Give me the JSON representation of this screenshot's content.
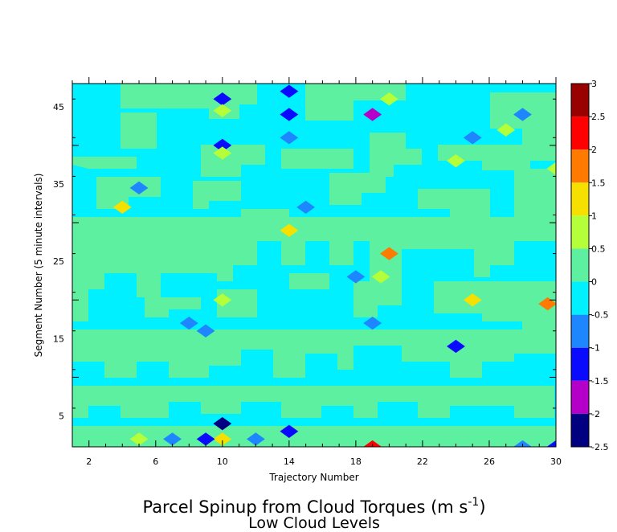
{
  "chart_data": {
    "type": "heatmap",
    "title": "Parcel Spinup from Cloud Torques (m s",
    "title_superscript": "-1",
    "title_close": ")",
    "subtitle": "Low Cloud Levels",
    "xlabel": "Trajectory Number",
    "ylabel": "Segment Number (5 minute intervals)",
    "xlim": [
      1,
      30
    ],
    "ylim": [
      1,
      48
    ],
    "x_ticks": [
      2,
      6,
      10,
      14,
      18,
      22,
      26,
      30
    ],
    "y_ticks": [
      5,
      15,
      25,
      35,
      45
    ],
    "background_level": "-0.5 to 0",
    "colorbar": {
      "labels": [
        "3",
        "2.5",
        "2",
        "1.5",
        "1",
        "0.5",
        "0",
        "-0.5",
        "-1",
        "-1.5",
        "-2",
        "-2.5"
      ],
      "colors": [
        "#990000",
        "#ff0000",
        "#ff7a00",
        "#f5e000",
        "#b5ff3a",
        "#5cf0a0",
        "#00f0ff",
        "#1e86ff",
        "#0a0aff",
        "#b400c8",
        "#000080"
      ]
    },
    "patches": [
      {
        "x": 10,
        "y": 46,
        "value": -1
      },
      {
        "x": 10,
        "y": 44.5,
        "value": 1
      },
      {
        "x": 14,
        "y": 47,
        "value": -1
      },
      {
        "x": 14,
        "y": 44,
        "value": -1
      },
      {
        "x": 14,
        "y": 41,
        "value": -0.5
      },
      {
        "x": 19,
        "y": 44,
        "value": -1.5
      },
      {
        "x": 20,
        "y": 46,
        "value": 1
      },
      {
        "x": 28,
        "y": 44,
        "value": -0.5
      },
      {
        "x": 27,
        "y": 42,
        "value": 1
      },
      {
        "x": 25,
        "y": 41,
        "value": -0.5
      },
      {
        "x": 24,
        "y": 38,
        "value": 1
      },
      {
        "x": 10,
        "y": 40,
        "value": -1
      },
      {
        "x": 10,
        "y": 39,
        "value": 1
      },
      {
        "x": 30,
        "y": 37,
        "value": 1
      },
      {
        "x": 5,
        "y": 34.5,
        "value": -0.5
      },
      {
        "x": 4,
        "y": 32,
        "value": 1.5
      },
      {
        "x": 15,
        "y": 32,
        "value": -0.5
      },
      {
        "x": 14,
        "y": 29,
        "value": 1.5
      },
      {
        "x": 20,
        "y": 26,
        "value": 2
      },
      {
        "x": 18,
        "y": 23,
        "value": -0.5
      },
      {
        "x": 19.5,
        "y": 23,
        "value": 1
      },
      {
        "x": 25,
        "y": 20,
        "value": 1.5
      },
      {
        "x": 29.5,
        "y": 19.5,
        "value": 2
      },
      {
        "x": 10,
        "y": 20,
        "value": 1
      },
      {
        "x": 8,
        "y": 17,
        "value": -0.5
      },
      {
        "x": 9,
        "y": 16,
        "value": -0.5
      },
      {
        "x": 19,
        "y": 17,
        "value": -0.5
      },
      {
        "x": 24,
        "y": 14,
        "value": -1
      },
      {
        "x": 10,
        "y": 4,
        "value": -2
      },
      {
        "x": 10,
        "y": 2,
        "value": 1.5
      },
      {
        "x": 9,
        "y": 2,
        "value": -1
      },
      {
        "x": 7,
        "y": 2,
        "value": -0.5
      },
      {
        "x": 5,
        "y": 2,
        "value": 1
      },
      {
        "x": 12,
        "y": 2,
        "value": -0.5
      },
      {
        "x": 14,
        "y": 3,
        "value": -1
      },
      {
        "x": 19,
        "y": 1,
        "value": 2.5
      },
      {
        "x": 28,
        "y": 1,
        "value": -0.5
      },
      {
        "x": 30,
        "y": 1,
        "value": -1
      }
    ]
  }
}
